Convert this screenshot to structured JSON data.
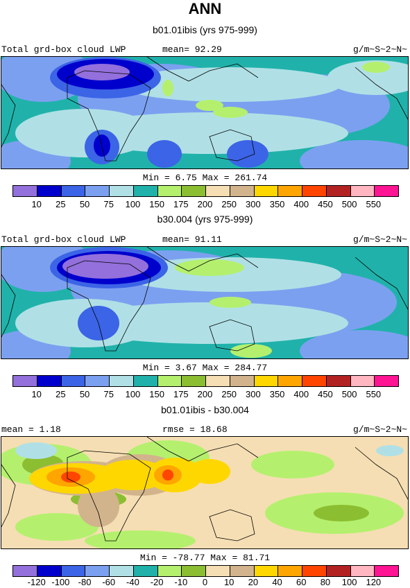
{
  "title": "ANN",
  "panels": [
    {
      "subtitle": "b01.01ibis (yrs 975-999)",
      "left": "Total grd-box cloud LWP",
      "mid": "mean=  92.29",
      "right": "g/m~S~2~N~",
      "minmax": "Min =   6.75 Max = 261.74",
      "labels": [
        "10",
        "25",
        "50",
        "75",
        "100",
        "150",
        "175",
        "200",
        "250",
        "300",
        "350",
        "400",
        "450",
        "500",
        "550"
      ],
      "colors": [
        "#9370db",
        "#0000cd",
        "#3c64e6",
        "#7ca0f0",
        "#b0e0e6",
        "#20b2aa",
        "#b4f06e",
        "#8cbe32",
        "#f5deb3",
        "#d2b48c",
        "#ffd700",
        "#ffa500",
        "#ff4500",
        "#b22222",
        "#ffb6c1",
        "#ff1493"
      ],
      "map_base": "#20b2aa"
    },
    {
      "subtitle": "b30.004 (yrs 975-999)",
      "left": "Total grd-box cloud LWP",
      "mid": "mean=  91.11",
      "right": "g/m~S~2~N~",
      "minmax": "Min =   3.67 Max = 284.77",
      "labels": [
        "10",
        "25",
        "50",
        "75",
        "100",
        "150",
        "175",
        "200",
        "250",
        "300",
        "350",
        "400",
        "450",
        "500",
        "550"
      ],
      "colors": [
        "#9370db",
        "#0000cd",
        "#3c64e6",
        "#7ca0f0",
        "#b0e0e6",
        "#20b2aa",
        "#b4f06e",
        "#8cbe32",
        "#f5deb3",
        "#d2b48c",
        "#ffd700",
        "#ffa500",
        "#ff4500",
        "#b22222",
        "#ffb6c1",
        "#ff1493"
      ],
      "map_base": "#20b2aa"
    },
    {
      "subtitle": "b01.01ibis - b30.004",
      "left": "mean =    1.18",
      "mid": "rmse =   18.68",
      "right": "g/m~S~2~N~",
      "minmax": "Min = -78.77 Max =  81.71",
      "labels": [
        "-120",
        "-100",
        "-80",
        "-60",
        "-40",
        "-20",
        "-10",
        "0",
        "10",
        "20",
        "40",
        "60",
        "80",
        "100",
        "120"
      ],
      "colors": [
        "#9370db",
        "#0000cd",
        "#3c64e6",
        "#7ca0f0",
        "#b0e0e6",
        "#20b2aa",
        "#b4f06e",
        "#8cbe32",
        "#f5deb3",
        "#d2b48c",
        "#ffd700",
        "#ffa500",
        "#ff4500",
        "#b22222",
        "#ffb6c1",
        "#ff1493"
      ],
      "map_base": "#f5deb3"
    }
  ]
}
